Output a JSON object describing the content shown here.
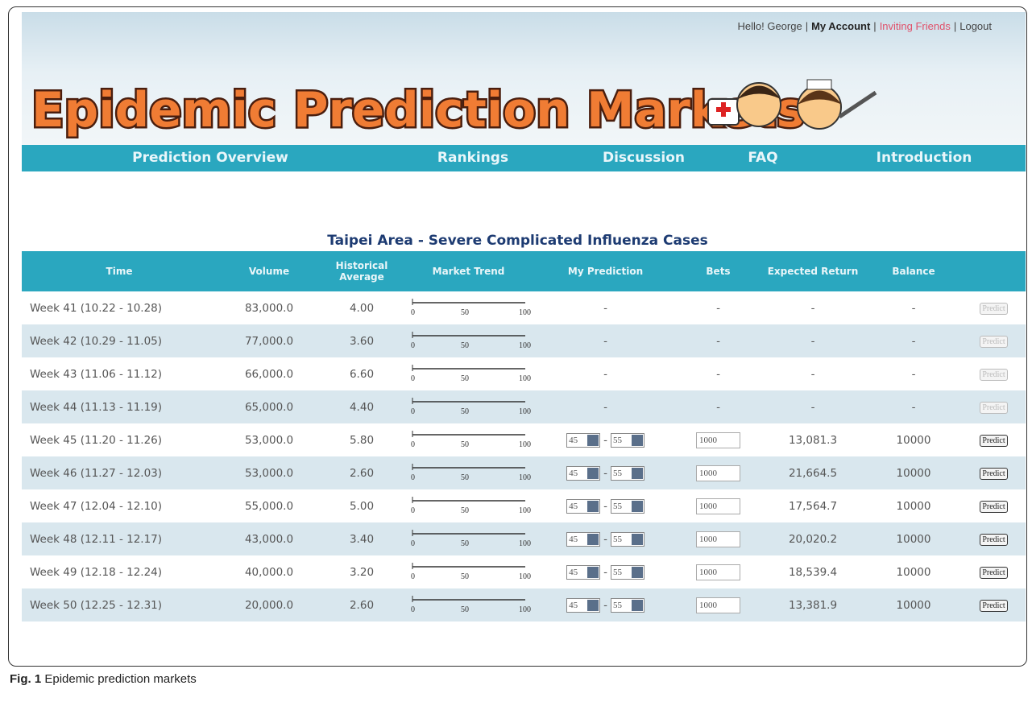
{
  "header": {
    "title": "Epidemic Prediction Markets",
    "greeting": "Hello! George",
    "separator": "|",
    "links": [
      "My Account",
      "Inviting Friends",
      "Logout"
    ]
  },
  "nav": [
    "Prediction Overview",
    "Rankings",
    "Discussion",
    "FAQ",
    "Introduction"
  ],
  "table": {
    "title": "Taipei Area - Severe Complicated Influenza Cases",
    "columns": [
      "Time",
      "Volume",
      "Historical Average",
      "Market Trend",
      "My Prediction",
      "Bets",
      "Expected Return",
      "Balance"
    ],
    "trend_scale": [
      0,
      50,
      100
    ],
    "button": "Predict",
    "range_separator": "-",
    "rows": [
      {
        "time": "Week 41 (10.22 - 10.28)",
        "volume": "83,000.0",
        "historical_average": "4.00",
        "prediction": "-",
        "bets": "-",
        "expected_return": "-",
        "balance": "-"
      },
      {
        "time": "Week 42 (10.29 - 11.05)",
        "volume": "77,000.0",
        "historical_average": "3.60",
        "prediction": "-",
        "bets": "-",
        "expected_return": "-",
        "balance": "-"
      },
      {
        "time": "Week 43 (11.06 - 11.12)",
        "volume": "66,000.0",
        "historical_average": "6.60",
        "prediction": "-",
        "bets": "-",
        "expected_return": "-",
        "balance": "-"
      },
      {
        "time": "Week 44 (11.13 - 11.19)",
        "volume": "65,000.0",
        "historical_average": "4.40",
        "prediction": "-",
        "bets": "-",
        "expected_return": "-",
        "balance": "-"
      },
      {
        "time": "Week 45 (11.20 - 11.26)",
        "volume": "53,000.0",
        "historical_average": "5.80",
        "prediction": {
          "low": "45",
          "high": "55"
        },
        "bets": "1000",
        "expected_return": "13,081.3",
        "balance": "10000"
      },
      {
        "time": "Week 46 (11.27 - 12.03)",
        "volume": "53,000.0",
        "historical_average": "2.60",
        "prediction": {
          "low": "45",
          "high": "55"
        },
        "bets": "1000",
        "expected_return": "21,664.5",
        "balance": "10000"
      },
      {
        "time": "Week 47 (12.04 - 12.10)",
        "volume": "55,000.0",
        "historical_average": "5.00",
        "prediction": {
          "low": "45",
          "high": "55"
        },
        "bets": "1000",
        "expected_return": "17,564.7",
        "balance": "10000"
      },
      {
        "time": "Week 48 (12.11 - 12.17)",
        "volume": "43,000.0",
        "historical_average": "3.40",
        "prediction": {
          "low": "45",
          "high": "55"
        },
        "bets": "1000",
        "expected_return": "20,020.2",
        "balance": "10000"
      },
      {
        "time": "Week 49 (12.18 - 12.24)",
        "volume": "40,000.0",
        "historical_average": "3.20",
        "prediction": {
          "low": "45",
          "high": "55"
        },
        "bets": "1000",
        "expected_return": "18,539.4",
        "balance": "10000"
      },
      {
        "time": "Week 50 (12.25 - 12.31)",
        "volume": "20,000.0",
        "historical_average": "2.60",
        "prediction": {
          "low": "45",
          "high": "55"
        },
        "bets": "1000",
        "expected_return": "13,381.9",
        "balance": "10000"
      }
    ]
  },
  "caption": {
    "label": "Fig. 1",
    "text": "Epidemic prediction markets"
  }
}
